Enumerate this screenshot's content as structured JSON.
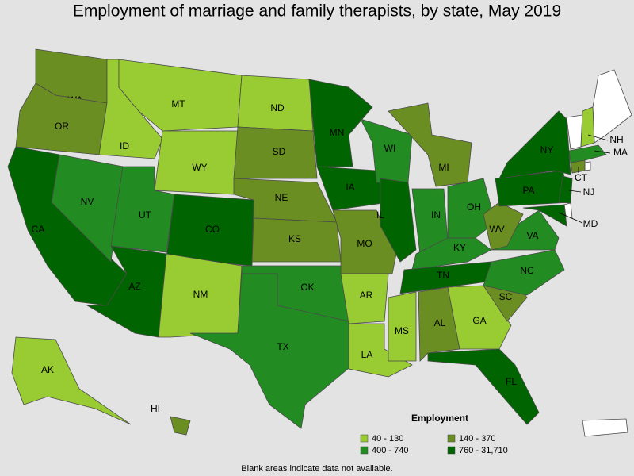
{
  "title": "Employment of marriage and family therapists, by state, May 2019",
  "legend": {
    "title": "Employment",
    "bins": [
      {
        "label": "40 - 130",
        "color": "#99cc33"
      },
      {
        "label": "140 - 370",
        "color": "#6b8e23"
      },
      {
        "label": "400 - 740",
        "color": "#228b22"
      },
      {
        "label": "760 - 31,710",
        "color": "#006400"
      }
    ]
  },
  "states": [
    {
      "label": "WA",
      "color": "#6b8e23"
    },
    {
      "label": "OR",
      "color": "#6b8e23"
    },
    {
      "label": "CA",
      "color": "#006400"
    },
    {
      "label": "NV",
      "color": "#228b22"
    },
    {
      "label": "ID",
      "color": "#99cc33"
    },
    {
      "label": "MT",
      "color": "#99cc33"
    },
    {
      "label": "WY",
      "color": "#99cc33"
    },
    {
      "label": "UT",
      "color": "#228b22"
    },
    {
      "label": "CO",
      "color": "#006400"
    },
    {
      "label": "AZ",
      "color": "#006400"
    },
    {
      "label": "NM",
      "color": "#99cc33"
    },
    {
      "label": "ND",
      "color": "#99cc33"
    },
    {
      "label": "SD",
      "color": "#6b8e23"
    },
    {
      "label": "NE",
      "color": "#6b8e23"
    },
    {
      "label": "KS",
      "color": "#6b8e23"
    },
    {
      "label": "OK",
      "color": "#228b22"
    },
    {
      "label": "TX",
      "color": "#228b22"
    },
    {
      "label": "MN",
      "color": "#006400"
    },
    {
      "label": "IA",
      "color": "#006400"
    },
    {
      "label": "MO",
      "color": "#6b8e23"
    },
    {
      "label": "AR",
      "color": "#99cc33"
    },
    {
      "label": "LA",
      "color": "#99cc33"
    },
    {
      "label": "WI",
      "color": "#228b22"
    },
    {
      "label": "IL",
      "color": "#006400"
    },
    {
      "label": "MI",
      "color": "#6b8e23"
    },
    {
      "label": "IN",
      "color": "#228b22"
    },
    {
      "label": "OH",
      "color": "#228b22"
    },
    {
      "label": "KY",
      "color": "#228b22"
    },
    {
      "label": "TN",
      "color": "#006400"
    },
    {
      "label": "MS",
      "color": "#99cc33"
    },
    {
      "label": "AL",
      "color": "#6b8e23"
    },
    {
      "label": "GA",
      "color": "#99cc33"
    },
    {
      "label": "FL",
      "color": "#006400"
    },
    {
      "label": "SC",
      "color": "#6b8e23"
    },
    {
      "label": "NC",
      "color": "#228b22"
    },
    {
      "label": "VA",
      "color": "#228b22"
    },
    {
      "label": "WV",
      "color": "#6b8e23"
    },
    {
      "label": "PA",
      "color": "#006400"
    },
    {
      "label": "NY",
      "color": "#006400"
    },
    {
      "label": "MD",
      "color": "#006400"
    },
    {
      "label": "NJ",
      "color": "#006400"
    },
    {
      "label": "CT",
      "color": "#6b8e23"
    },
    {
      "label": "MA",
      "color": "#228b22"
    },
    {
      "label": "NH",
      "color": "#99cc33"
    },
    {
      "label": "AK",
      "color": "#99cc33"
    },
    {
      "label": "HI",
      "color": "#6b8e23"
    }
  ],
  "note": "Blank areas indicate data not available."
}
